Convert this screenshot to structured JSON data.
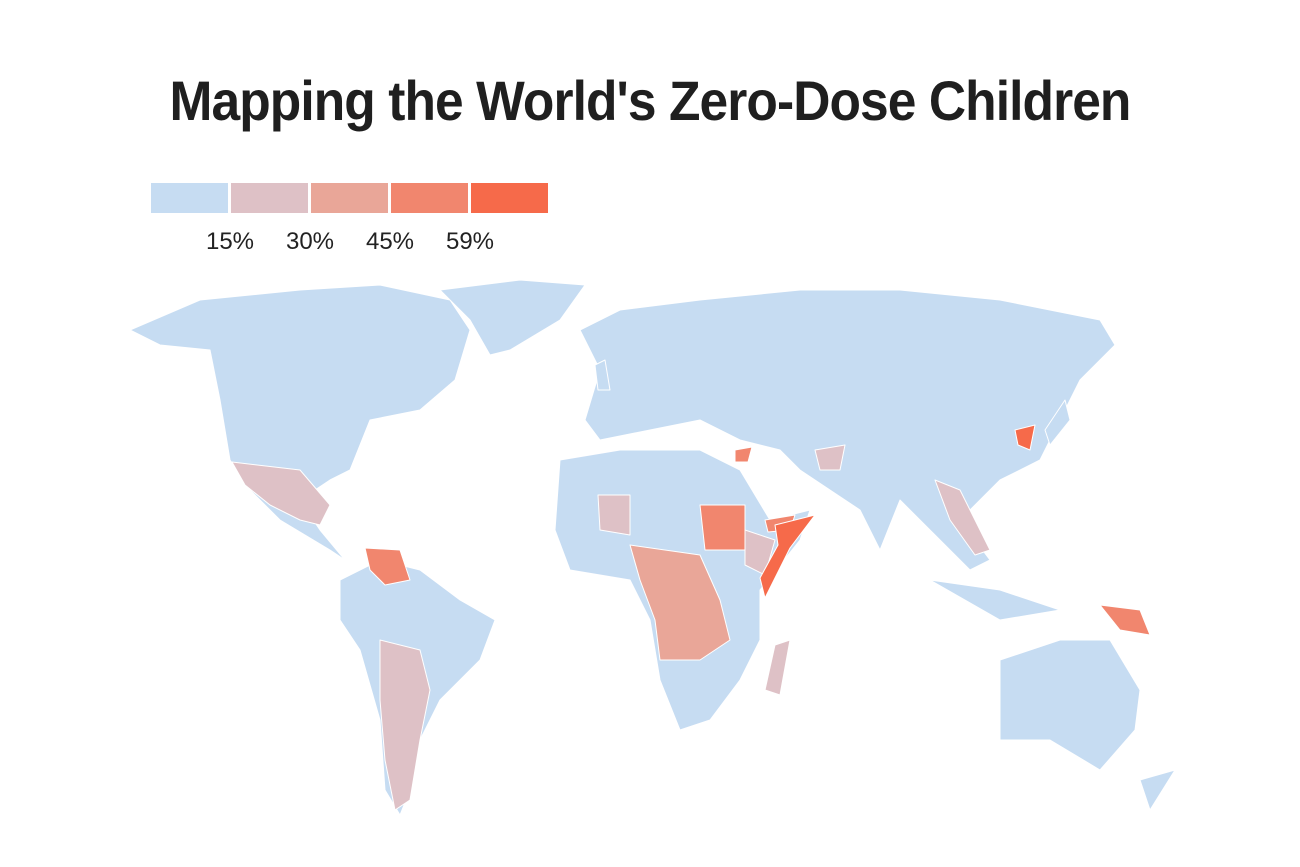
{
  "title": "Mapping the World's Zero-Dose Children",
  "legend": {
    "colors": [
      "#c6dcf2",
      "#dec1c6",
      "#e9a698",
      "#f1866e",
      "#f66a4a"
    ],
    "labels": [
      "15%",
      "30%",
      "45%",
      "59%"
    ]
  }
}
